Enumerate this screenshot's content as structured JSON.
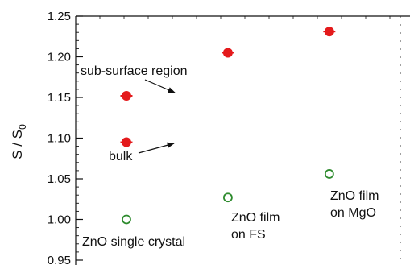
{
  "chart_data": {
    "type": "scatter",
    "y_axis": {
      "label_main": "S / S",
      "label_sub": "0",
      "range": [
        0.95,
        1.25
      ],
      "ticks": [
        "0.95",
        "1.00",
        "1.05",
        "1.10",
        "1.15",
        "1.20",
        "1.25"
      ],
      "tick_values": [
        0.95,
        1.0,
        1.05,
        1.1,
        1.15,
        1.2,
        1.25
      ]
    },
    "x_axis": {
      "range": [
        0.5,
        3.7
      ],
      "ticks_visible": false
    },
    "grid": false,
    "series": [
      {
        "marker": "filled-circle",
        "color": "#e41a1c",
        "points": [
          {
            "x": 1,
            "y": 1.152
          },
          {
            "x": 1,
            "y": 1.095
          },
          {
            "x": 2,
            "y": 1.205
          },
          {
            "x": 3,
            "y": 1.231
          }
        ]
      },
      {
        "marker": "open-circle",
        "color": "#2e8b2e",
        "points": [
          {
            "x": 1,
            "y": 1.0
          },
          {
            "x": 2,
            "y": 1.027
          },
          {
            "x": 3,
            "y": 1.056
          }
        ]
      }
    ],
    "annotations": {
      "sub_surface": "sub-surface region",
      "bulk": "bulk",
      "single_crystal": "ZnO single crystal",
      "film_fs_line1": "ZnO film",
      "film_fs_line2": "on FS",
      "film_mgo_line1": "ZnO film",
      "film_mgo_line2": "on MgO"
    }
  }
}
